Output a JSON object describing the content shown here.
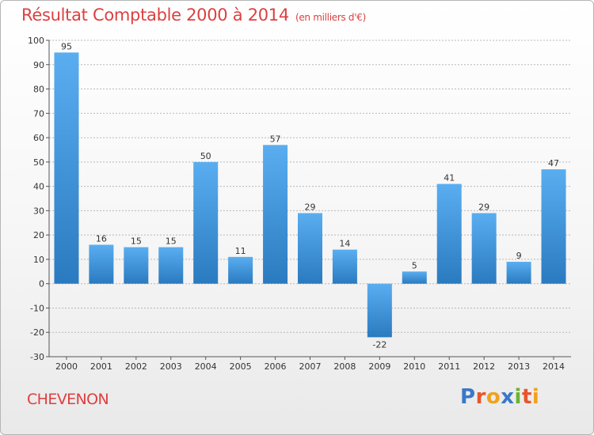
{
  "header": {
    "title": "Résultat Comptable 2000 à 2014",
    "subtitle": "(en milliers d'€)"
  },
  "footer": {
    "commune": "CHEVENON",
    "logo_text": "Proxiti",
    "logo_colors": [
      "#3a78c9",
      "#e8552b",
      "#f0a21d",
      "#3a78c9",
      "#6ab333",
      "#e8552b",
      "#f0a21d"
    ]
  },
  "colors": {
    "bar_top": "#5aaef0",
    "bar_bottom": "#2a7ac0",
    "accent_red": "#dd4040",
    "grid": "#b8b8b8"
  },
  "chart_data": {
    "type": "bar",
    "title": "Résultat Comptable 2000 à 2014",
    "xlabel": "",
    "ylabel": "",
    "ylim": [
      -30,
      100
    ],
    "yticks": [
      -30,
      -20,
      -10,
      0,
      10,
      20,
      30,
      40,
      50,
      60,
      70,
      80,
      90,
      100
    ],
    "grid": true,
    "categories": [
      "2000",
      "2001",
      "2002",
      "2003",
      "2004",
      "2005",
      "2006",
      "2007",
      "2008",
      "2009",
      "2010",
      "2011",
      "2012",
      "2013",
      "2014"
    ],
    "values": [
      95,
      16,
      15,
      15,
      50,
      11,
      57,
      29,
      14,
      -22,
      5,
      41,
      29,
      9,
      47
    ]
  }
}
